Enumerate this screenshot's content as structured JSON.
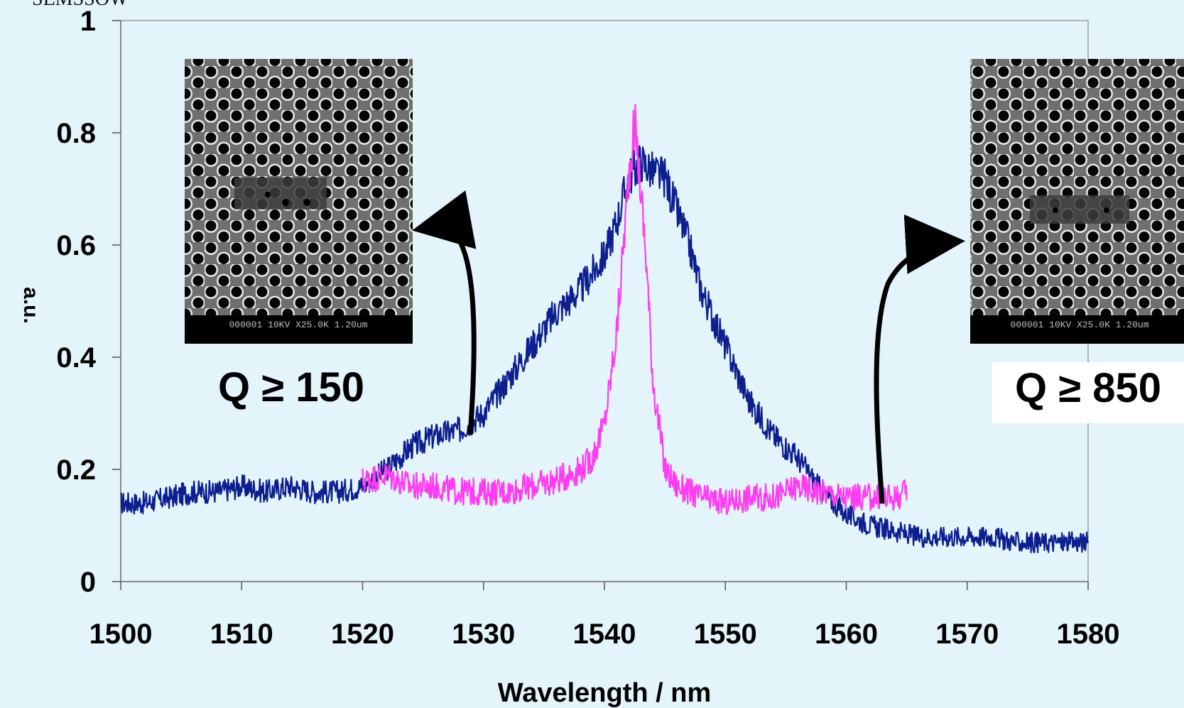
{
  "chart_data": {
    "type": "line",
    "xlabel": "Wavelength / nm",
    "ylabel": "a.u.",
    "top_text_fragment": "SEMSSOW",
    "xlim": [
      1500,
      1580
    ],
    "ylim": [
      0,
      1
    ],
    "x_ticks": [
      1500,
      1510,
      1520,
      1530,
      1540,
      1550,
      1560,
      1570,
      1580
    ],
    "x_tick_labels": [
      "1500",
      "1510",
      "1520",
      "1530",
      "1540",
      "1550",
      "1560",
      "1570",
      "1580"
    ],
    "y_ticks": [
      0,
      0.2,
      0.4,
      0.6,
      0.8,
      1
    ],
    "y_tick_labels": [
      "0",
      "0.2",
      "0.4",
      "0.6",
      "0.8",
      "1"
    ],
    "grid": false,
    "legend": "none",
    "colors": {
      "background": "#e4f4fb",
      "blue_series": "#0d1f8f",
      "magenta_series": "#ff3cf2",
      "q_box": "#ffffff",
      "arrow": "#000000"
    },
    "series": [
      {
        "color": "#0d1f8f",
        "x": [
          1500,
          1502,
          1504,
          1506,
          1508,
          1510,
          1512,
          1514,
          1516,
          1518,
          1520,
          1522,
          1524,
          1526,
          1528,
          1530,
          1532,
          1534,
          1536,
          1538,
          1540,
          1541,
          1542,
          1543,
          1544,
          1545,
          1546,
          1547,
          1548,
          1550,
          1552,
          1554,
          1556,
          1558,
          1560,
          1562,
          1564,
          1566,
          1568,
          1570,
          1572,
          1574,
          1576,
          1578,
          1580
        ],
        "y": [
          0.14,
          0.14,
          0.15,
          0.16,
          0.16,
          0.17,
          0.16,
          0.17,
          0.16,
          0.16,
          0.17,
          0.2,
          0.24,
          0.26,
          0.27,
          0.3,
          0.36,
          0.42,
          0.48,
          0.52,
          0.58,
          0.64,
          0.72,
          0.75,
          0.73,
          0.72,
          0.66,
          0.6,
          0.52,
          0.42,
          0.32,
          0.26,
          0.22,
          0.16,
          0.12,
          0.1,
          0.09,
          0.08,
          0.08,
          0.08,
          0.08,
          0.07,
          0.07,
          0.07,
          0.07
        ]
      },
      {
        "color": "#ff3cf2",
        "x": [
          1520,
          1522,
          1524,
          1526,
          1528,
          1530,
          1532,
          1534,
          1536,
          1538,
          1539,
          1540,
          1541,
          1542,
          1542.5,
          1543,
          1543.5,
          1544,
          1545,
          1546,
          1548,
          1550,
          1552,
          1554,
          1556,
          1558,
          1560,
          1562,
          1564,
          1565
        ],
        "y": [
          0.18,
          0.19,
          0.17,
          0.17,
          0.16,
          0.16,
          0.16,
          0.17,
          0.18,
          0.2,
          0.22,
          0.28,
          0.44,
          0.72,
          0.82,
          0.7,
          0.56,
          0.36,
          0.2,
          0.17,
          0.15,
          0.14,
          0.15,
          0.15,
          0.17,
          0.16,
          0.15,
          0.15,
          0.15,
          0.16
        ]
      }
    ]
  },
  "annotations": {
    "left": {
      "q_text": "Q ≥ 150",
      "sem_caption": "000001 10KV X25.0K 1.20um"
    },
    "right": {
      "q_text": "Q ≥ 850",
      "sem_caption": "000001 10KV X25.0K 1.20um"
    }
  }
}
